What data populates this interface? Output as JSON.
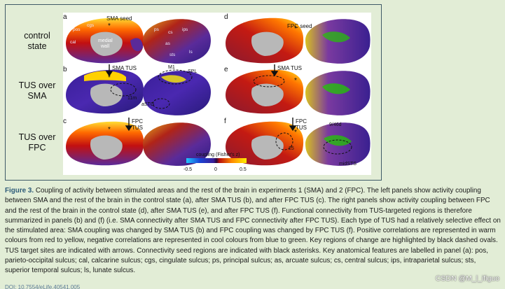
{
  "figure": {
    "rows": [
      {
        "label_line1": "control",
        "label_line2": "state"
      },
      {
        "label_line1": "TUS over",
        "label_line2": "SMA"
      },
      {
        "label_line1": "TUS over",
        "label_line2": "FPC"
      }
    ],
    "panel_letters": [
      "a",
      "b",
      "c",
      "d",
      "e",
      "f"
    ],
    "annotations": {
      "sma_seed": "SMA seed",
      "fpc_seed": "FPC seed",
      "sma_tus": "SMA TUS",
      "fpc_tus_line1": "FPC",
      "fpc_tus_line2": "TUS",
      "medial_wall_line1": "medial",
      "medial_wall_line2": "wall",
      "m1": "M1",
      "spl": "SPL",
      "astg": "aSTG",
      "area_11m": "11m",
      "area_25": "25",
      "area_9_46d": "9/46d",
      "midsts": "midSTS",
      "sulci_a": [
        "pos",
        "cgs",
        "cal",
        "ps",
        "cs",
        "ips",
        "as",
        "sts",
        "ls"
      ]
    },
    "colorbar": {
      "title": "coupling (Fisher's z)",
      "ticks": [
        "-0.5",
        "0",
        "0.5"
      ],
      "negative_colors": [
        "#22c8ff",
        "#1a44d6",
        "#3a1f99"
      ],
      "positive_colors": [
        "#ff2200",
        "#ff8800",
        "#ffee00"
      ]
    }
  },
  "caption": {
    "fig_label": "Figure 3.",
    "text": "Coupling of activity between stimulated areas and the rest of the brain in experiments 1 (SMA) and 2 (FPC). The left panels show activity coupling between SMA and the rest of the brain in the control state (a), after SMA TUS (b), and after FPC TUS (c). The right panels show activity coupling between FPC and the rest of the brain in the control state (d), after SMA TUS (e), and after FPC TUS (f). Functional connectivity from TUS-targeted regions is therefore summarized in panels (b) and (f) (i.e. SMA connectivity after SMA TUS and FPC connectivity after FPC TUS). Each type of TUS had a relatively selective effect on the stimulated area: SMA coupling was changed by SMA TUS (b) and FPC coupling was changed by FPC TUS (f). Positive correlations are represented in warm colours from red to yellow, negative correlations are represented in cool colours from blue to green. Key regions of change are highlighted by black dashed ovals. TUS target sites are indicated with arrows. Connectivity seed regions are indicated with black asterisks. Key anatomical features are labelled in panel (a): pos, parieto-occipital sulcus; cal, calcarine sulcus; cgs, cingulate sulcus; ps, principal sulcus; as, arcuate sulcus; cs, central sulcus; ips, intraparietal sulcus; sts, superior temporal sulcus; ls, lunate sulcus."
  },
  "doi_text": "DOI: 10.7554/eLife.40541.005",
  "watermark": "CSDN @M_l_ifiguo"
}
